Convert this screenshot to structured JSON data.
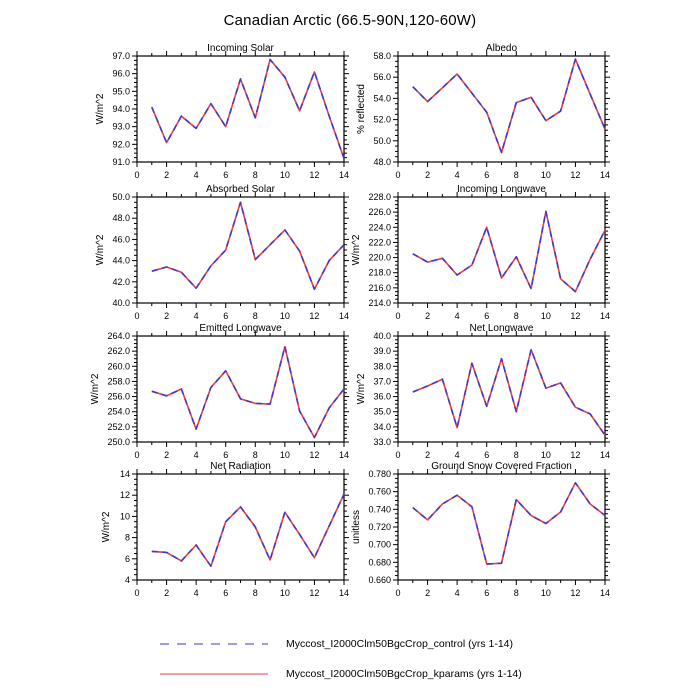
{
  "page_title": "Canadian Arctic (66.5-90N,120-60W)",
  "colors": {
    "control": "#3b3bcf",
    "kparams": "#ee3b3b",
    "frame": "#000000"
  },
  "legend": {
    "entries": [
      {
        "label": "Myccost_I2000Clm50BgcCrop_control (yrs 1-14)",
        "style": "dashed",
        "color": "#7b7bdd"
      },
      {
        "label": "Myccost_I2000Clm50BgcCrop_kparams (yrs 1-14)",
        "style": "solid",
        "color": "#f08080"
      }
    ]
  },
  "chart_data": [
    {
      "type": "line",
      "title": "Incoming Solar",
      "ylabel": "W/m^2",
      "xlim": [
        0,
        14
      ],
      "xtick_step": 2,
      "xminor_divs": 2,
      "ylim": [
        91.0,
        97.0
      ],
      "ytick_step": 1.0,
      "yminor_divs": 4,
      "ydecimals": 1,
      "x": [
        1,
        2,
        3,
        4,
        5,
        6,
        7,
        8,
        9,
        10,
        11,
        12,
        13,
        14
      ],
      "series": [
        {
          "name": "control",
          "linestyle": "dashed",
          "values": [
            94.1,
            92.1,
            93.6,
            92.9,
            94.3,
            93.0,
            95.7,
            93.5,
            96.8,
            95.8,
            93.9,
            96.1,
            93.6,
            91.2
          ]
        },
        {
          "name": "kparams",
          "linestyle": "solid",
          "values": [
            94.1,
            92.1,
            93.6,
            92.9,
            94.3,
            93.0,
            95.7,
            93.5,
            96.8,
            95.8,
            93.9,
            96.1,
            93.6,
            91.2
          ]
        }
      ]
    },
    {
      "type": "line",
      "title": "Albedo",
      "ylabel": "% reflected",
      "xlim": [
        0,
        14
      ],
      "xtick_step": 2,
      "xminor_divs": 2,
      "ylim": [
        48.0,
        58.0
      ],
      "ytick_step": 2.0,
      "yminor_divs": 4,
      "ydecimals": 1,
      "x": [
        1,
        2,
        3,
        4,
        5,
        6,
        7,
        8,
        9,
        10,
        11,
        12,
        13,
        14
      ],
      "series": [
        {
          "name": "control",
          "linestyle": "dashed",
          "values": [
            55.1,
            53.7,
            55.0,
            56.3,
            54.5,
            52.7,
            48.9,
            53.6,
            54.1,
            51.9,
            52.8,
            57.7,
            54.4,
            51.1
          ]
        },
        {
          "name": "kparams",
          "linestyle": "solid",
          "values": [
            55.1,
            53.7,
            55.0,
            56.3,
            54.5,
            52.7,
            48.9,
            53.6,
            54.1,
            51.9,
            52.8,
            57.7,
            54.4,
            51.1
          ]
        }
      ]
    },
    {
      "type": "line",
      "title": "Absorbed Solar",
      "ylabel": "W/m^2",
      "xlim": [
        0,
        14
      ],
      "xtick_step": 2,
      "xminor_divs": 2,
      "ylim": [
        40.0,
        50.0
      ],
      "ytick_step": 2.0,
      "yminor_divs": 4,
      "ydecimals": 1,
      "x": [
        1,
        2,
        3,
        4,
        5,
        6,
        7,
        8,
        9,
        10,
        11,
        12,
        13,
        14
      ],
      "series": [
        {
          "name": "control",
          "linestyle": "dashed",
          "values": [
            43.0,
            43.4,
            42.9,
            41.4,
            43.5,
            45.0,
            49.5,
            44.1,
            45.5,
            46.9,
            44.9,
            41.3,
            44.0,
            45.5
          ]
        },
        {
          "name": "kparams",
          "linestyle": "solid",
          "values": [
            43.0,
            43.4,
            42.9,
            41.4,
            43.5,
            45.0,
            49.5,
            44.1,
            45.5,
            46.9,
            44.9,
            41.3,
            44.0,
            45.5
          ]
        }
      ]
    },
    {
      "type": "line",
      "title": "Incoming Longwave",
      "ylabel": "W/m^2",
      "xlim": [
        0,
        14
      ],
      "xtick_step": 2,
      "xminor_divs": 2,
      "ylim": [
        214.0,
        228.0
      ],
      "ytick_step": 2.0,
      "yminor_divs": 4,
      "ydecimals": 1,
      "x": [
        1,
        2,
        3,
        4,
        5,
        6,
        7,
        8,
        9,
        10,
        11,
        12,
        13,
        14
      ],
      "series": [
        {
          "name": "control",
          "linestyle": "dashed",
          "values": [
            220.5,
            219.4,
            219.9,
            217.7,
            219.0,
            224.0,
            217.3,
            220.1,
            215.9,
            226.1,
            217.2,
            215.5,
            219.8,
            223.6
          ]
        },
        {
          "name": "kparams",
          "linestyle": "solid",
          "values": [
            220.5,
            219.4,
            219.9,
            217.7,
            219.0,
            224.0,
            217.3,
            220.1,
            215.9,
            226.1,
            217.2,
            215.5,
            219.8,
            223.6
          ]
        }
      ]
    },
    {
      "type": "line",
      "title": "Emitted Longwave",
      "ylabel": "W/m^2",
      "xlim": [
        0,
        14
      ],
      "xtick_step": 2,
      "xminor_divs": 2,
      "ylim": [
        250.0,
        264.0
      ],
      "ytick_step": 2.0,
      "yminor_divs": 4,
      "ydecimals": 1,
      "x": [
        1,
        2,
        3,
        4,
        5,
        6,
        7,
        8,
        9,
        10,
        11,
        12,
        13,
        14
      ],
      "series": [
        {
          "name": "control",
          "linestyle": "dashed",
          "values": [
            256.7,
            256.1,
            257.0,
            251.7,
            257.2,
            259.4,
            255.7,
            255.1,
            255.0,
            262.6,
            254.1,
            250.6,
            254.5,
            257.0
          ]
        },
        {
          "name": "kparams",
          "linestyle": "solid",
          "values": [
            256.7,
            256.1,
            257.0,
            251.7,
            257.2,
            259.4,
            255.7,
            255.1,
            255.0,
            262.6,
            254.1,
            250.6,
            254.5,
            257.0
          ]
        }
      ]
    },
    {
      "type": "line",
      "title": "Net Longwave",
      "ylabel": "W/m^2",
      "xlim": [
        0,
        14
      ],
      "xtick_step": 2,
      "xminor_divs": 2,
      "ylim": [
        33.0,
        40.0
      ],
      "ytick_step": 1.0,
      "yminor_divs": 4,
      "ydecimals": 1,
      "x": [
        1,
        2,
        3,
        4,
        5,
        6,
        7,
        8,
        9,
        10,
        11,
        12,
        13,
        14
      ],
      "series": [
        {
          "name": "control",
          "linestyle": "dashed",
          "values": [
            36.3,
            36.7,
            37.15,
            33.95,
            38.2,
            35.35,
            38.5,
            35.0,
            39.1,
            36.55,
            36.9,
            35.3,
            34.85,
            33.45
          ]
        },
        {
          "name": "kparams",
          "linestyle": "solid",
          "values": [
            36.3,
            36.7,
            37.15,
            33.95,
            38.2,
            35.35,
            38.5,
            35.0,
            39.1,
            36.55,
            36.9,
            35.3,
            34.85,
            33.45
          ]
        }
      ]
    },
    {
      "type": "line",
      "title": "Net Radiation",
      "ylabel": "W/m^2",
      "xlim": [
        0,
        14
      ],
      "xtick_step": 2,
      "xminor_divs": 2,
      "ylim": [
        4,
        14
      ],
      "ytick_step": 2,
      "yminor_divs": 4,
      "ydecimals": 0,
      "x": [
        1,
        2,
        3,
        4,
        5,
        6,
        7,
        8,
        9,
        10,
        11,
        12,
        13,
        14
      ],
      "series": [
        {
          "name": "control",
          "linestyle": "dashed",
          "values": [
            6.7,
            6.6,
            5.8,
            7.3,
            5.3,
            9.5,
            10.9,
            9.0,
            5.9,
            10.4,
            8.3,
            6.1,
            9.1,
            12.1
          ]
        },
        {
          "name": "kparams",
          "linestyle": "solid",
          "values": [
            6.7,
            6.6,
            5.8,
            7.3,
            5.3,
            9.5,
            10.9,
            9.0,
            5.9,
            10.4,
            8.3,
            6.1,
            9.1,
            12.1
          ]
        }
      ]
    },
    {
      "type": "line",
      "title": "Ground Snow Covered Fraction",
      "ylabel": "unitless",
      "xlim": [
        0,
        14
      ],
      "xtick_step": 2,
      "xminor_divs": 2,
      "ylim": [
        0.66,
        0.78
      ],
      "ytick_step": 0.02,
      "yminor_divs": 4,
      "ydecimals": 3,
      "x": [
        1,
        2,
        3,
        4,
        5,
        6,
        7,
        8,
        9,
        10,
        11,
        12,
        13,
        14
      ],
      "series": [
        {
          "name": "control",
          "linestyle": "dashed",
          "values": [
            0.742,
            0.728,
            0.746,
            0.756,
            0.743,
            0.678,
            0.679,
            0.751,
            0.733,
            0.724,
            0.737,
            0.77,
            0.746,
            0.733
          ]
        },
        {
          "name": "kparams",
          "linestyle": "solid",
          "values": [
            0.742,
            0.728,
            0.746,
            0.756,
            0.743,
            0.678,
            0.679,
            0.751,
            0.733,
            0.724,
            0.737,
            0.77,
            0.746,
            0.733
          ]
        }
      ]
    }
  ]
}
